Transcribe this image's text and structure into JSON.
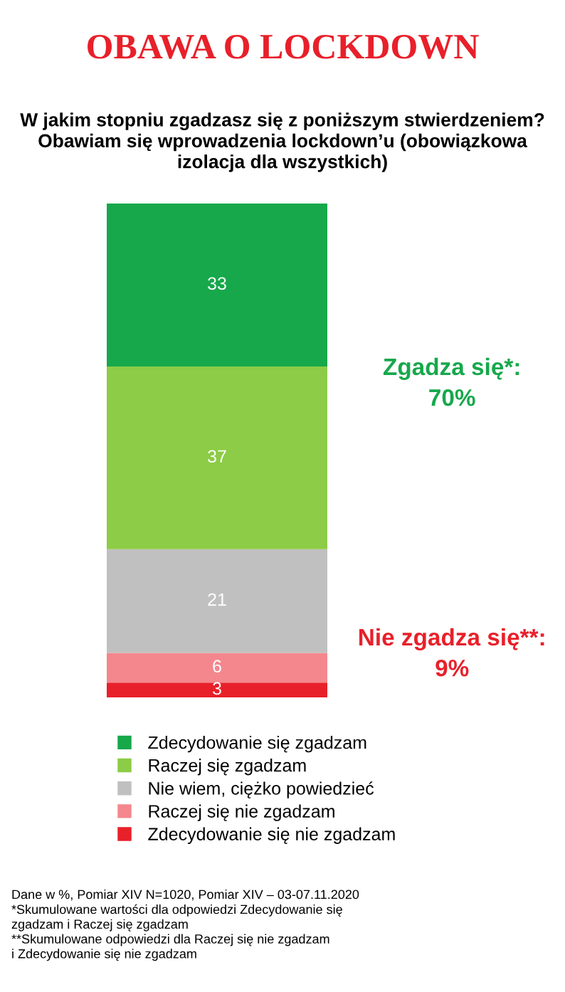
{
  "chart_data": {
    "type": "bar",
    "stacked": true,
    "title": "OBAWA O LOCKDOWN",
    "subtitle": "W jakim stopniu zgadzasz się z poniższym stwierdzeniem?\nObawiam się wprowadzenia lockdown’u (obowiązkowa\nizolacja dla wszystkich)",
    "categories": [
      null
    ],
    "series": [
      {
        "name": "Zdecydowanie się nie zgadzam",
        "color": "#e8202a",
        "values": [
          3
        ]
      },
      {
        "name": "Raczej się nie zgadzam",
        "color": "#f4878d",
        "values": [
          6
        ]
      },
      {
        "name": "Nie wiem, ciężko powiedzieć",
        "color": "#c0c0c0",
        "values": [
          21
        ]
      },
      {
        "name": "Raczej się zgadzam",
        "color": "#8ccc46",
        "values": [
          37
        ]
      },
      {
        "name": "Zdecydowanie się zgadzam",
        "color": "#16a84b",
        "values": [
          33
        ]
      }
    ],
    "data_labels": true,
    "legend": "bottom",
    "annotations": [
      "Zgadza się*:\n70%",
      "Nie zgadza się**:\n9%",
      "Dane w %, Pomiar XIV N=1020, Pomiar XIV – 03-07.11.2020\n*Skumulowane wartości dla odpowiedzi Zdecydowanie się\nzgadzam i Raczej się zgadzam\n**Skumulowane odpowiedzi dla Raczej się nie zgadzam\ni Zdecydowanie się nie zgadzam"
    ]
  }
}
